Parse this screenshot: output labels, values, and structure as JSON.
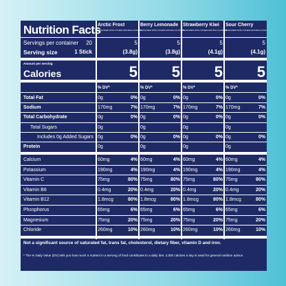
{
  "header": {
    "title": "Nutrition Facts",
    "servings_label": "Servings per container",
    "servings": "20",
    "serving_size_label": "Serving size",
    "serving_size": "1 Stick",
    "amount_label": "Amount per serving",
    "calories_label": "Calories"
  },
  "flavors": [
    {
      "name": "Arctic Frost",
      "note": "FLAVORED WITH OTHER NATURAL FLAVORS",
      "servings": "5",
      "serving_size": "(3.8g)",
      "calories": "5",
      "dv_header": "% DV*"
    },
    {
      "name": "Berry Lemonade",
      "note": "FLAVORED WITH OTHER NATURAL FLAVORS",
      "servings": "5",
      "serving_size": "(3.8g)",
      "calories": "5",
      "dv_header": "% DV*"
    },
    {
      "name": "Strawberry Kiwi",
      "note": "FLAVORED WITH OTHER NATURAL FLAVORS",
      "servings": "5",
      "serving_size": "(4.1g)",
      "calories": "5",
      "dv_header": "% DV*"
    },
    {
      "name": "Sour Cherry",
      "note": "FLAVORED WITH OTHER NATURAL FLAVORS",
      "servings": "5",
      "serving_size": "(4.1g)",
      "calories": "5",
      "dv_header": "% DV*"
    }
  ],
  "nutrients": [
    {
      "label": "Total Fat",
      "amounts": [
        "0g",
        "0g",
        "0g",
        "0g"
      ],
      "dv": [
        "0%",
        "0%",
        "0%",
        "0%"
      ]
    },
    {
      "label": "Sodium",
      "amounts": [
        "170mg",
        "170mg",
        "170mg",
        "170mg"
      ],
      "dv": [
        "7%",
        "7%",
        "7%",
        "7%"
      ]
    },
    {
      "label": "Total Carbohydrate",
      "amounts": [
        "0g",
        "0g",
        "0g",
        "0g"
      ],
      "dv": [
        "0%",
        "0%",
        "0%",
        "0%"
      ]
    },
    {
      "label": "Total Sugars",
      "amounts": [
        "0g",
        "0g",
        "0g",
        "0g"
      ]
    },
    {
      "label": "Includes 0g Added Sugars",
      "amounts": [
        "0g",
        "0g",
        "0g",
        "0g"
      ],
      "dv": [
        "0%",
        "0%",
        "0%",
        "0%"
      ]
    },
    {
      "label": "Protein",
      "amounts": [
        "0g",
        "0g",
        "0g",
        "0g"
      ]
    }
  ],
  "vitamins_minerals": [
    {
      "label": "Calcium",
      "amounts": [
        "60mg",
        "60mg",
        "60mg",
        "60mg"
      ],
      "dv": [
        "4%",
        "4%",
        "4%",
        "4%"
      ]
    },
    {
      "label": "Potassium",
      "amounts": [
        "190mg",
        "190mg",
        "190mg",
        "190mg"
      ],
      "dv": [
        "4%",
        "4%",
        "4%",
        "4%"
      ]
    },
    {
      "label": "Vitamin C",
      "amounts": [
        "75mg",
        "75mg",
        "75mg",
        "75mg"
      ],
      "dv": [
        "80%",
        "80%",
        "80%",
        "80%"
      ]
    },
    {
      "label": "Vitamin B6",
      "amounts": [
        "0.4mg",
        "0.4mg",
        "0.4mg",
        "0.4mg"
      ],
      "dv": [
        "20%",
        "20%",
        "20%",
        "20%"
      ]
    },
    {
      "label": "Vitamin B12",
      "amounts": [
        "1.8mcg",
        "1.8mcg",
        "1.8mcg",
        "1.8mcg"
      ],
      "dv": [
        "80%",
        "80%",
        "80%",
        "80%"
      ]
    },
    {
      "label": "Phosphorus",
      "amounts": [
        "65mg",
        "65mg",
        "65mg",
        "65mg"
      ],
      "dv": [
        "6%",
        "6%",
        "6%",
        "6%"
      ]
    },
    {
      "label": "Magnesium",
      "amounts": [
        "75mg",
        "75mg",
        "75mg",
        "75mg"
      ],
      "dv": [
        "20%",
        "20%",
        "20%",
        "20%"
      ]
    },
    {
      "label": "Chloride",
      "amounts": [
        "260mg",
        "260mg",
        "260mg",
        "260mg"
      ],
      "dv": [
        "10%",
        "10%",
        "10%",
        "10%"
      ]
    }
  ],
  "footnotes": [
    "Not a significant source of saturated fat, trans fat, cholesterol, dietary fiber, vitamin D and iron.",
    "* The % Daily Value (DV) tells you how much a nutrient in a serving of food contributes to a daily diet. 2,000 calories a day is used for general nutrition advice."
  ]
}
